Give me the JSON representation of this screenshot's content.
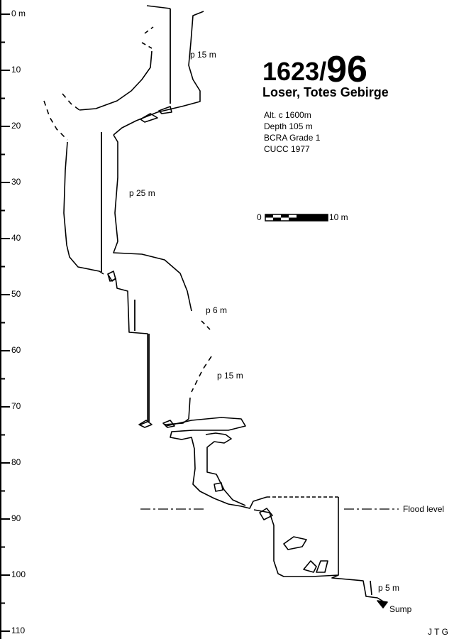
{
  "title": {
    "number": "1623/",
    "number_big": "96",
    "name": "Loser, Totes Gebirge"
  },
  "info": [
    "Alt. c 1600m",
    "Depth 105 m",
    "BCRA Grade 1",
    "CUCC 1977"
  ],
  "scale_bar": {
    "start": "0",
    "end": "10 m"
  },
  "depth_axis": {
    "unit": "m",
    "labels": [
      "0 m",
      "10",
      "20",
      "30",
      "40",
      "50",
      "60",
      "70",
      "80",
      "90",
      "100",
      "110"
    ],
    "major_step": 10,
    "minor_step": 5,
    "range": [
      0,
      110
    ]
  },
  "annotations": {
    "pitch1": "p 15 m",
    "pitch2": "p 25 m",
    "pitch3": "p 6 m",
    "pitch4": "p 15 m",
    "pitch5": "p 5 m",
    "flood": "Flood level",
    "sump": "Sump",
    "author": "J T G"
  },
  "colors": {
    "ink": "#000000",
    "paper": "#ffffff"
  }
}
